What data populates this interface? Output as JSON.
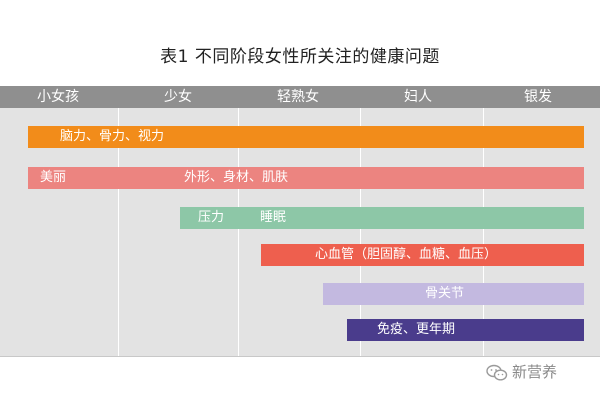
{
  "title": "表1  不同阶段女性所关注的健康问题",
  "stages": [
    "小女孩",
    "少女",
    "轻熟女",
    "妇人",
    "银发"
  ],
  "bars": [
    {
      "id": "brain",
      "color": "#f28c1a",
      "labels": [
        "脑力、骨力、视力"
      ]
    },
    {
      "id": "beauty",
      "color": "#ec8480",
      "labels": [
        "美丽",
        "外形、身材、肌肤"
      ]
    },
    {
      "id": "stress",
      "color": "#8dc7a7",
      "labels": [
        "压力",
        "睡眠"
      ]
    },
    {
      "id": "cardio",
      "color": "#ee5f4e",
      "labels": [
        "心血管（胆固醇、血糖、血压）"
      ]
    },
    {
      "id": "bone",
      "color": "#c3b9e0",
      "labels": [
        "骨关节"
      ]
    },
    {
      "id": "immune",
      "color": "#4a3c8c",
      "labels": [
        "免疫、更年期"
      ]
    }
  ],
  "colors": {
    "header_bg": "#8f8f8f",
    "plot_bg": "#e3e3e3",
    "gridline": "#ffffff"
  },
  "watermark": {
    "icon": "wechat-icon",
    "text": "新营养"
  }
}
